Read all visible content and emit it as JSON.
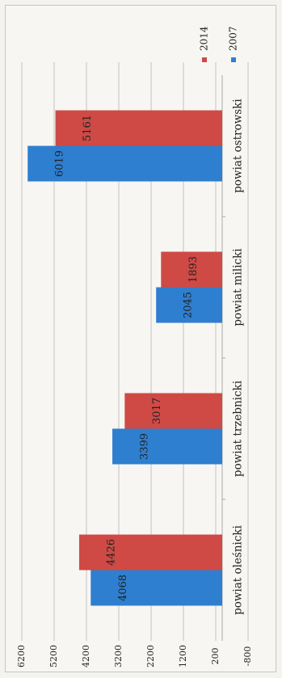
{
  "chart_data": {
    "type": "bar",
    "orientation": "rotated-90",
    "categories": [
      "powiat ostrowski",
      "powiat milicki",
      "powiat trzebnicki",
      "powiat oleśnicki"
    ],
    "series": [
      {
        "name": "2007",
        "color": "#2e7fd0",
        "values": [
          6019,
          2045,
          3399,
          4068
        ]
      },
      {
        "name": "2014",
        "color": "#cf4a45",
        "values": [
          5161,
          1893,
          3017,
          4426
        ]
      }
    ],
    "value_ticks": [
      6200,
      5200,
      4200,
      3200,
      2200,
      1200,
      200,
      -800
    ],
    "value_tick_labels": [
      "6200",
      "5200",
      "4200",
      "3200",
      "2200",
      "1200",
      "200",
      "-800"
    ],
    "ylim": [
      -800,
      6200
    ],
    "baseline": 0,
    "legend_position": "top-right",
    "grid": true
  }
}
